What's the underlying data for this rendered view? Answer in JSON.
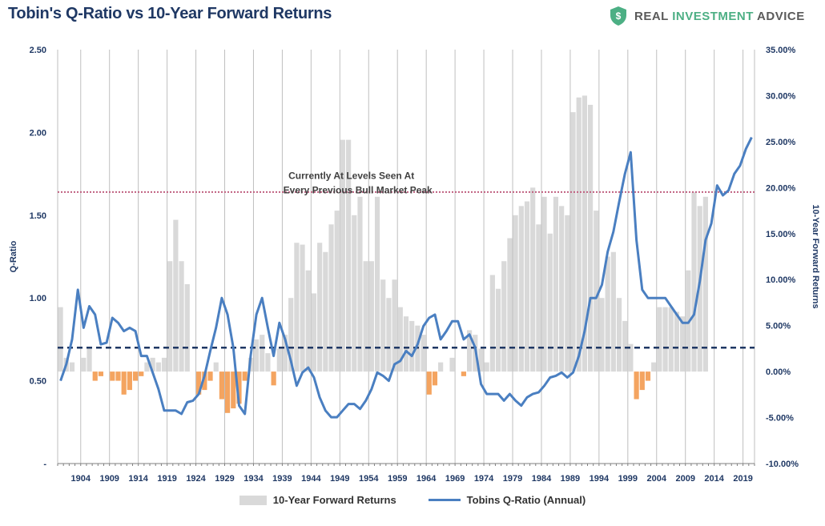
{
  "title": "Tobin's Q-Ratio vs 10-Year Forward Returns",
  "brand": {
    "part1": "REAL ",
    "part2": "INVESTMENT",
    "part3": " ADVICE",
    "icon": "shield-dollar-icon",
    "color_main": "#5a5a5a",
    "color_accent": "#4caf84"
  },
  "legend": {
    "bars": "10-Year Forward Returns",
    "line": "Tobins Q-Ratio (Annual)"
  },
  "chart_data": {
    "type": "bar+line",
    "title": "Tobin's Q-Ratio vs 10-Year Forward Returns",
    "y_left": {
      "label": "Q-Ratio",
      "min": 0,
      "max": 2.5,
      "ticks": [
        "-",
        "0.50",
        "1.00",
        "1.50",
        "2.00",
        "2.50"
      ]
    },
    "y_right": {
      "label": "10-Year Forward Returns",
      "min": -10,
      "max": 35,
      "ticks": [
        "-10.00%",
        "-5.00%",
        "0.00%",
        "5.00%",
        "10.00%",
        "15.00%",
        "20.00%",
        "25.00%",
        "30.00%",
        "35.00%"
      ]
    },
    "x_ticks": [
      "1904",
      "1909",
      "1914",
      "1919",
      "1924",
      "1929",
      "1934",
      "1939",
      "1944",
      "1949",
      "1954",
      "1959",
      "1964",
      "1969",
      "1974",
      "1979",
      "1984",
      "1989",
      "1994",
      "1999",
      "2004",
      "2009",
      "2014",
      "2019"
    ],
    "x_start": 1900,
    "x_end": 2021,
    "bar_start": 1900,
    "bars": [
      7.0,
      1.5,
      1.0,
      0.0,
      1.5,
      2.5,
      -1.0,
      -0.5,
      0.0,
      -1.0,
      -1.0,
      -2.5,
      -2.0,
      -1.0,
      -0.5,
      1.0,
      1.5,
      1.0,
      1.5,
      12.0,
      16.5,
      12.0,
      9.5,
      0.0,
      -2.5,
      -2.0,
      -1.0,
      1.0,
      -3.0,
      -4.5,
      -4.0,
      -3.5,
      -1.0,
      1.5,
      3.5,
      4.0,
      2.0,
      -1.5,
      2.5,
      4.0,
      8.0,
      14.0,
      13.8,
      11.0,
      8.5,
      14.0,
      13.0,
      16.0,
      17.5,
      25.2,
      25.2,
      17.0,
      19.0,
      12.0,
      12.0,
      19.0,
      10.0,
      8.0,
      10.0,
      7.0,
      6.0,
      5.5,
      5.0,
      4.0,
      -2.5,
      -1.5,
      1.0,
      0.0,
      1.5,
      0.0,
      -0.5,
      4.5,
      4.0,
      2.5,
      1.0,
      10.5,
      9.0,
      12.0,
      14.5,
      17.0,
      18.0,
      18.5,
      20.0,
      16.0,
      19.0,
      15.0,
      19.0,
      18.0,
      17.0,
      28.2,
      29.8,
      30.0,
      29.0,
      17.5,
      8.0,
      12.5,
      13.0,
      8.0,
      5.5,
      3.0,
      -3.0,
      -2.0,
      -1.0,
      1.0,
      7.0,
      7.0,
      7.0,
      6.5,
      6.0,
      11.0,
      19.5,
      18.0,
      19.0,
      0.0,
      0.0,
      0.0,
      0.0,
      0.0,
      0.0,
      0.0
    ],
    "line": {
      "name": "Tobins Q-Ratio (Annual)",
      "x": [
        1900,
        1901,
        1902,
        1903,
        1904,
        1905,
        1906,
        1907,
        1908,
        1909,
        1910,
        1911,
        1912,
        1913,
        1914,
        1915,
        1916,
        1917,
        1918,
        1919,
        1920,
        1921,
        1922,
        1923,
        1924,
        1925,
        1926,
        1927,
        1928,
        1929,
        1930,
        1931,
        1932,
        1933,
        1934,
        1935,
        1936,
        1937,
        1938,
        1939,
        1940,
        1941,
        1942,
        1943,
        1944,
        1945,
        1946,
        1947,
        1948,
        1949,
        1950,
        1951,
        1952,
        1953,
        1954,
        1955,
        1956,
        1957,
        1958,
        1959,
        1960,
        1961,
        1962,
        1963,
        1964,
        1965,
        1966,
        1967,
        1968,
        1969,
        1970,
        1971,
        1972,
        1973,
        1974,
        1975,
        1976,
        1977,
        1978,
        1979,
        1980,
        1981,
        1982,
        1983,
        1984,
        1985,
        1986,
        1987,
        1988,
        1989,
        1990,
        1991,
        1992,
        1993,
        1994,
        1995,
        1996,
        1997,
        1998,
        1999,
        2000,
        2001,
        2002,
        2003,
        2004,
        2005,
        2006,
        2007,
        2008,
        2009,
        2010,
        2011,
        2012,
        2013,
        2014,
        2015,
        2016,
        2017,
        2018,
        2019,
        2020
      ],
      "y": [
        0.5,
        0.6,
        0.75,
        1.05,
        0.82,
        0.95,
        0.9,
        0.72,
        0.73,
        0.88,
        0.85,
        0.8,
        0.82,
        0.8,
        0.65,
        0.65,
        0.55,
        0.45,
        0.32,
        0.32,
        0.32,
        0.3,
        0.37,
        0.38,
        0.42,
        0.53,
        0.68,
        0.82,
        1.0,
        0.9,
        0.7,
        0.35,
        0.3,
        0.65,
        0.9,
        1.0,
        0.82,
        0.65,
        0.85,
        0.75,
        0.62,
        0.47,
        0.55,
        0.58,
        0.52,
        0.4,
        0.32,
        0.28,
        0.28,
        0.32,
        0.36,
        0.36,
        0.33,
        0.38,
        0.45,
        0.55,
        0.53,
        0.5,
        0.6,
        0.62,
        0.68,
        0.65,
        0.72,
        0.83,
        0.88,
        0.9,
        0.75,
        0.8,
        0.86,
        0.86,
        0.75,
        0.78,
        0.7,
        0.48,
        0.42,
        0.42,
        0.42,
        0.38,
        0.42,
        0.38,
        0.35,
        0.4,
        0.42,
        0.43,
        0.47,
        0.52,
        0.53,
        0.55,
        0.52,
        0.55,
        0.65,
        0.8,
        1.0,
        1.0,
        1.08,
        1.28,
        1.4,
        1.58,
        1.75,
        1.88,
        1.35,
        1.05,
        1.0,
        1.0,
        1.0,
        1.0,
        0.95,
        0.9,
        0.85,
        0.85,
        0.9,
        1.1,
        1.35,
        1.45,
        1.68,
        1.62,
        1.65,
        1.75,
        1.8,
        1.9,
        1.97
      ]
    },
    "reference_lines": [
      {
        "value": 1.64,
        "axis": "left",
        "style": "dotted",
        "color": "#c06080"
      },
      {
        "value": 0.7,
        "axis": "left",
        "style": "dashed",
        "color": "#1f3864"
      }
    ],
    "annotation": {
      "line1": "Currently At Levels Seen At",
      "line2": "Every Previous Bull Market Peak",
      "year": 1951,
      "q": 1.72
    },
    "colors": {
      "bar_pos": "#d9d9d9",
      "bar_neg": "#f4a460",
      "line": "#4a7fc1",
      "axis_text": "#1f3864",
      "grid": "#bfbfbf"
    }
  }
}
